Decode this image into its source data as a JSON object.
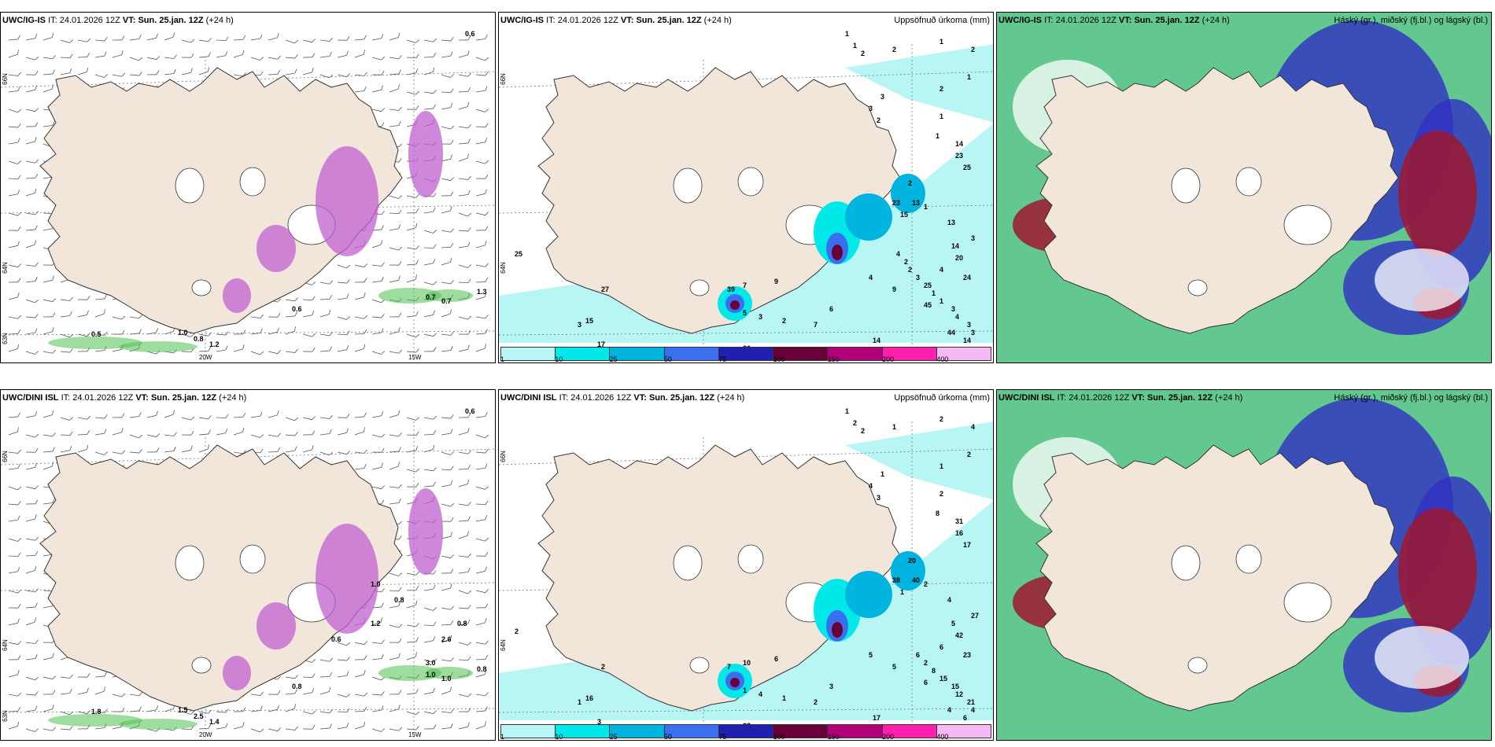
{
  "panels": [
    {
      "id": "top-left",
      "model": "UWC/IG-IS",
      "it_label": "IT:",
      "it_value": "24.01.2026 12Z",
      "vt_label": "VT:",
      "vt_value": "Sun. 25.jan. 12Z",
      "lead": "(+24 h)",
      "right_title": "",
      "lon_labels": [
        "20W",
        "15W"
      ],
      "lat_labels": [
        "66N",
        "64N",
        "63N"
      ],
      "values": [
        "0.6",
        "0.5",
        "1.0",
        "0.8",
        "1.2",
        "0.6",
        "0.7",
        "0.7",
        "1.3"
      ]
    },
    {
      "id": "top-middle",
      "model": "UWC/IG-IS",
      "it_label": "IT:",
      "it_value": "24.01.2026 12Z",
      "vt_label": "VT:",
      "vt_value": "Sun. 25.jan. 12Z",
      "lead": "(+24 h)",
      "right_title": "Uppsöfnuð úrkoma (mm)",
      "lat_labels": [
        "66N",
        "64N"
      ],
      "values": [
        "1",
        "1",
        "2",
        "2",
        "1",
        "2",
        "1",
        "2",
        "3",
        "3",
        "2",
        "1",
        "1",
        "14",
        "23",
        "25",
        "2",
        "13",
        "23",
        "1",
        "15",
        "13",
        "14",
        "20",
        "3",
        "24",
        "4",
        "45",
        "44",
        "39",
        "7",
        "9",
        "4",
        "9",
        "6",
        "7",
        "2",
        "3",
        "5",
        "27",
        "25",
        "3",
        "15",
        "17",
        "20",
        "14",
        "14",
        "3",
        "3",
        "4",
        "3",
        "1",
        "1",
        "25",
        "3",
        "2",
        "2",
        "4"
      ],
      "colorbar_labels": [
        "1",
        "10",
        "25",
        "50",
        "75",
        "100",
        "150",
        "200",
        "400"
      ]
    },
    {
      "id": "top-right",
      "model": "UWC/IG-IS",
      "it_label": "IT:",
      "it_value": "24.01.2026 12Z",
      "vt_label": "VT:",
      "vt_value": "Sun. 25.jan. 12Z",
      "lead": "(+24 h)",
      "right_title": "Háský (gr.), miðský (fj.bl.) og lágský (bl.)"
    },
    {
      "id": "bottom-left",
      "model": "UWC/DINI ISL",
      "it_label": "IT:",
      "it_value": "24.01.2026 12Z",
      "vt_label": "VT:",
      "vt_value": "Sun. 25.jan. 12Z",
      "lead": "(+24 h)",
      "right_title": "",
      "lon_labels": [
        "20W",
        "15W"
      ],
      "lat_labels": [
        "66N",
        "64N",
        "63N"
      ],
      "values": [
        "0.6",
        "1.8",
        "1.5",
        "2.5",
        "1.4",
        "0.8",
        "1.0",
        "1.0",
        "0.8",
        "1.0",
        "1.2",
        "0.6",
        "0.8",
        "3.0",
        "2.6",
        "0.8"
      ]
    },
    {
      "id": "bottom-middle",
      "model": "UWC/DINI ISL",
      "it_label": "IT:",
      "it_value": "24.01.2026 12Z",
      "vt_label": "VT:",
      "vt_value": "Sun. 25.jan. 12Z",
      "lead": "(+24 h)",
      "right_title": "Uppsöfnuð úrkoma (mm)",
      "lat_labels": [
        "66N",
        "64N"
      ],
      "values": [
        "1",
        "2",
        "2",
        "1",
        "2",
        "4",
        "2",
        "1",
        "1",
        "4",
        "3",
        "2",
        "8",
        "31",
        "16",
        "17",
        "20",
        "40",
        "38",
        "2",
        "1",
        "4",
        "5",
        "42",
        "27",
        "23",
        "6",
        "6",
        "4",
        "7",
        "10",
        "6",
        "5",
        "5",
        "3",
        "2",
        "1",
        "4",
        "1",
        "2",
        "2",
        "1",
        "16",
        "3",
        "23",
        "17",
        "6",
        "4",
        "21",
        "12",
        "15",
        "15",
        "8",
        "2",
        "6"
      ],
      "colorbar_labels": [
        "1",
        "10",
        "25",
        "50",
        "75",
        "100",
        "150",
        "200",
        "400"
      ]
    },
    {
      "id": "bottom-right",
      "model": "UWC/DINI ISL",
      "it_label": "IT:",
      "it_value": "24.01.2026 12Z",
      "vt_label": "VT:",
      "vt_value": "Sun. 25.jan. 12Z",
      "lead": "(+24 h)",
      "right_title": "Háský (gr.), miðský (fj.bl.) og lágský (bl.)"
    }
  ],
  "colors": {
    "land": "#f2e6da",
    "precip_1": "#b8f6f6",
    "precip_10": "#00e8e8",
    "precip_25": "#00b4e0",
    "precip_50": "#3a70f0",
    "precip_75": "#2020b0",
    "precip_100": "#6a0038",
    "precip_150": "#b0007a",
    "precip_200": "#ff20b0",
    "precip_400": "#f4b8f4",
    "snow": "#c060d0",
    "rain": "#50c050",
    "high_cloud": "#20b060",
    "mid_cloud": "#3030c0",
    "low_cloud": "#a01830"
  },
  "colorbar_colors": [
    "#b8f6f6",
    "#00e8e8",
    "#00b4e0",
    "#3a70f0",
    "#2020b0",
    "#6a0038",
    "#b0007a",
    "#ff20b0",
    "#f4b8f4"
  ]
}
